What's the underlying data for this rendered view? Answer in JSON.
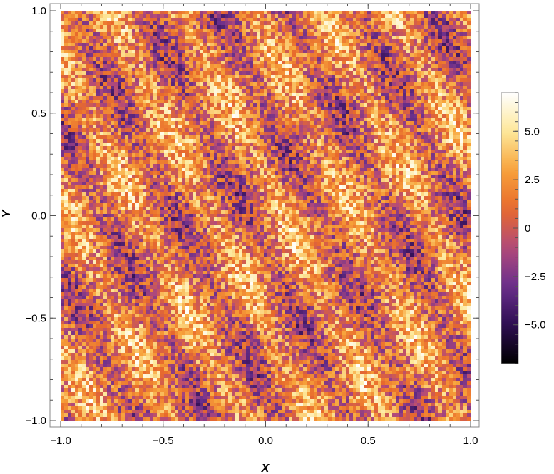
{
  "chart_data": {
    "type": "heatmap",
    "title": "",
    "xlabel": "X",
    "ylabel": "Y",
    "xlim": [
      -1.0,
      1.0
    ],
    "ylim": [
      -1.0,
      1.0
    ],
    "x_ticks": [
      "−1.0",
      "−0.5",
      "0.0",
      "0.5",
      "1.0"
    ],
    "x_tick_values": [
      -1.0,
      -0.5,
      0.0,
      0.5,
      1.0
    ],
    "y_ticks": [
      "−1.0",
      "−0.5",
      "0.0",
      "0.5",
      "1.0"
    ],
    "y_tick_values": [
      -1.0,
      -0.5,
      0.0,
      0.5,
      1.0
    ],
    "colorbar": {
      "range": [
        -7,
        7
      ],
      "ticks": [
        "−5.0",
        "−2.5",
        "0",
        "2.5",
        "5.0"
      ],
      "tick_values": [
        -5.0,
        -2.5,
        0,
        2.5,
        5.0
      ],
      "colormap": "inferno-like",
      "colors": [
        "#000000",
        "#2e0e52",
        "#6a2f8c",
        "#b24a7a",
        "#e86a2c",
        "#f7a23a",
        "#fde89a",
        "#ffffff"
      ]
    },
    "grid": false,
    "legend": "none",
    "pattern": "noisy diagonal stripes oscillating around 0"
  }
}
